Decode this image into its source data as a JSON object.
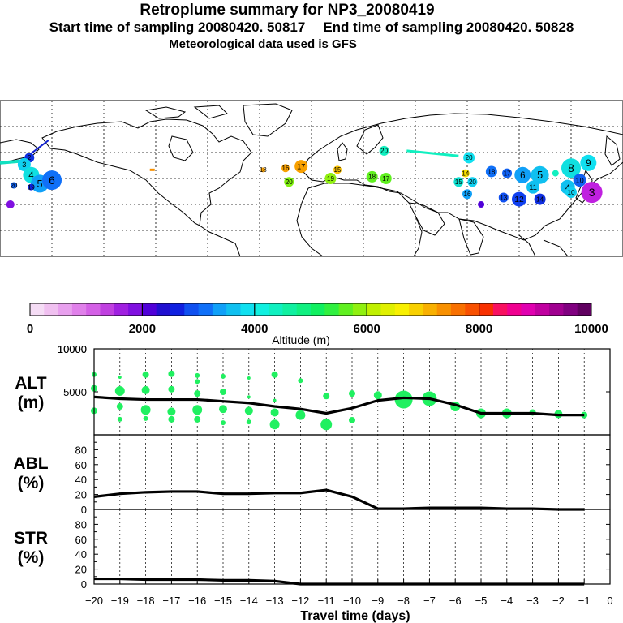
{
  "header": {
    "title": "Retroplume summary for NP3_20080419",
    "start_label": "Start time of sampling 20080420. 50817",
    "end_label": "End time of sampling 20080420. 50828",
    "met_label": "Meteorological data used is GFS"
  },
  "colorbar": {
    "label": "Altitude (m)",
    "tick_labels": [
      "0",
      "2000",
      "4000",
      "6000",
      "8000",
      "10000"
    ],
    "colors": [
      "#f5dcf5",
      "#f0c0f0",
      "#e8a0ee",
      "#e080ea",
      "#d460e6",
      "#c040e0",
      "#a020e0",
      "#8010e0",
      "#5000d8",
      "#2010d0",
      "#1020e0",
      "#1050f0",
      "#1070f8",
      "#10a0f8",
      "#10c0f0",
      "#10e0f0",
      "#10f0e0",
      "#10f0c0",
      "#10f0a0",
      "#10f080",
      "#10f060",
      "#30f040",
      "#60f020",
      "#90f010",
      "#c0f000",
      "#e0f000",
      "#f8f000",
      "#f8d000",
      "#f8b000",
      "#f89000",
      "#f87000",
      "#f85000",
      "#f83000",
      "#f81060",
      "#f00090",
      "#e000b0",
      "#c000a0",
      "#a00090",
      "#800080",
      "#600060"
    ]
  },
  "chart_data": {
    "type": "line",
    "x_label": "Travel time (days)",
    "x_ticks": [
      -20,
      -19,
      -18,
      -17,
      -16,
      -15,
      -14,
      -13,
      -12,
      -11,
      -10,
      -9,
      -8,
      -7,
      -6,
      -5,
      -4,
      -3,
      -2,
      -1,
      0
    ],
    "x_range": [
      -20,
      0
    ],
    "panels": [
      {
        "name": "ALT",
        "unit": "(m)",
        "ylim": [
          0,
          10000
        ],
        "y_ticks": [
          0,
          5000,
          10000
        ],
        "y_tick_labels": [
          "",
          "5000",
          "10000"
        ],
        "series": {
          "x": [
            -20,
            -19,
            -18,
            -17,
            -16,
            -15,
            -14,
            -13,
            -12,
            -11,
            -10,
            -9,
            -8,
            -7,
            -6,
            -5,
            -4,
            -3,
            -2,
            -1
          ],
          "y": [
            4400,
            4200,
            4100,
            4100,
            4100,
            3900,
            3700,
            3300,
            3000,
            2500,
            3100,
            4000,
            4300,
            4200,
            3500,
            2500,
            2500,
            2500,
            2300,
            2300
          ]
        },
        "scatter": [
          {
            "x": -20,
            "y": 7000,
            "r": 3
          },
          {
            "x": -20,
            "y": 5400,
            "r": 4
          },
          {
            "x": -20,
            "y": 2800,
            "r": 4
          },
          {
            "x": -19,
            "y": 6700,
            "r": 2
          },
          {
            "x": -19,
            "y": 5100,
            "r": 6
          },
          {
            "x": -19,
            "y": 3300,
            "r": 4
          },
          {
            "x": -19,
            "y": 1800,
            "r": 3
          },
          {
            "x": -18,
            "y": 7000,
            "r": 4
          },
          {
            "x": -18,
            "y": 5200,
            "r": 5
          },
          {
            "x": -18,
            "y": 2900,
            "r": 6
          },
          {
            "x": -18,
            "y": 1900,
            "r": 3
          },
          {
            "x": -17,
            "y": 7100,
            "r": 4
          },
          {
            "x": -17,
            "y": 5300,
            "r": 4
          },
          {
            "x": -17,
            "y": 2700,
            "r": 5
          },
          {
            "x": -17,
            "y": 1800,
            "r": 4
          },
          {
            "x": -16,
            "y": 6900,
            "r": 3
          },
          {
            "x": -16,
            "y": 6200,
            "r": 3
          },
          {
            "x": -16,
            "y": 4800,
            "r": 4
          },
          {
            "x": -16,
            "y": 2900,
            "r": 6
          },
          {
            "x": -16,
            "y": 1800,
            "r": 4
          },
          {
            "x": -15,
            "y": 6800,
            "r": 3
          },
          {
            "x": -15,
            "y": 5000,
            "r": 4
          },
          {
            "x": -15,
            "y": 3000,
            "r": 5
          },
          {
            "x": -15,
            "y": 1400,
            "r": 3
          },
          {
            "x": -14,
            "y": 6600,
            "r": 2
          },
          {
            "x": -14,
            "y": 4400,
            "r": 2
          },
          {
            "x": -14,
            "y": 2800,
            "r": 5
          },
          {
            "x": -14,
            "y": 1500,
            "r": 3
          },
          {
            "x": -13,
            "y": 7000,
            "r": 4
          },
          {
            "x": -13,
            "y": 4000,
            "r": 2
          },
          {
            "x": -13,
            "y": 2600,
            "r": 5
          },
          {
            "x": -13,
            "y": 1200,
            "r": 6
          },
          {
            "x": -12,
            "y": 6300,
            "r": 3
          },
          {
            "x": -12,
            "y": 2300,
            "r": 6
          },
          {
            "x": -11,
            "y": 4500,
            "r": 4
          },
          {
            "x": -11,
            "y": 1200,
            "r": 7
          },
          {
            "x": -10,
            "y": 4800,
            "r": 4
          },
          {
            "x": -10,
            "y": 1700,
            "r": 4
          },
          {
            "x": -9,
            "y": 4600,
            "r": 5
          },
          {
            "x": -8,
            "y": 4100,
            "r": 11
          },
          {
            "x": -7,
            "y": 4200,
            "r": 9
          },
          {
            "x": -6,
            "y": 3300,
            "r": 6
          },
          {
            "x": -5,
            "y": 2500,
            "r": 6
          },
          {
            "x": -4,
            "y": 2500,
            "r": 6
          },
          {
            "x": -3,
            "y": 2600,
            "r": 4
          },
          {
            "x": -2,
            "y": 2400,
            "r": 5
          },
          {
            "x": -1,
            "y": 2300,
            "r": 4
          }
        ]
      },
      {
        "name": "ABL",
        "unit": "(%)",
        "ylim": [
          0,
          100
        ],
        "y_ticks": [
          0,
          20,
          40,
          60,
          80
        ],
        "y_tick_labels": [
          "0",
          "20",
          "40",
          "60",
          "80"
        ],
        "series": {
          "x": [
            -20,
            -19,
            -18,
            -17,
            -16,
            -15,
            -14,
            -13,
            -12,
            -11,
            -10,
            -9,
            -8,
            -7,
            -6,
            -5,
            -4,
            -3,
            -2,
            -1
          ],
          "y": [
            17,
            21,
            23,
            24,
            24,
            21,
            21,
            22,
            22,
            26,
            17,
            1,
            1,
            2,
            2,
            2,
            1,
            1,
            0,
            0
          ]
        }
      },
      {
        "name": "STR",
        "unit": "(%)",
        "ylim": [
          0,
          100
        ],
        "y_ticks": [
          0,
          20,
          40,
          60,
          80
        ],
        "y_tick_labels": [
          "0",
          "20",
          "40",
          "60",
          "80"
        ],
        "series": {
          "x": [
            -20,
            -19,
            -18,
            -17,
            -16,
            -15,
            -14,
            -13,
            -12,
            -11,
            -10,
            -9,
            -8,
            -7,
            -6,
            -5,
            -4,
            -3,
            -2,
            -1
          ],
          "y": [
            7,
            7,
            6,
            6,
            6,
            5,
            5,
            4,
            0,
            0,
            0,
            0,
            0,
            0,
            0,
            0,
            0,
            0,
            0,
            0
          ]
        }
      }
    ]
  },
  "map": {
    "plume_labels": [
      {
        "t": "2",
        "lon": -163,
        "lat": 57,
        "color": "#1030e0",
        "r": 6
      },
      {
        "t": "3",
        "lon": -166,
        "lat": 53,
        "color": "#10d0f0",
        "r": 8
      },
      {
        "t": "4",
        "lon": -162,
        "lat": 47,
        "color": "#10e0e0",
        "r": 10
      },
      {
        "t": "5",
        "lon": -157,
        "lat": 42,
        "color": "#10a0f8",
        "r": 11
      },
      {
        "t": "6",
        "lon": -150,
        "lat": 44,
        "color": "#1070f8",
        "r": 12
      },
      {
        "t": "20",
        "lon": -172,
        "lat": 41,
        "color": "#1060f0",
        "r": 4
      },
      {
        "t": "",
        "lon": -174,
        "lat": 30,
        "color": "#8010e0",
        "r": 5
      },
      {
        "t": "19",
        "lon": -162,
        "lat": 40,
        "color": "#1020e0",
        "r": 4
      },
      {
        "t": "16",
        "lon": -15,
        "lat": 51,
        "color": "#f8a000",
        "r": 5
      },
      {
        "t": "17",
        "lon": -6,
        "lat": 52,
        "color": "#f8a000",
        "r": 8
      },
      {
        "t": "18",
        "lon": -28,
        "lat": 50,
        "color": "#f8a000",
        "r": 3
      },
      {
        "t": "15",
        "lon": 15,
        "lat": 50,
        "color": "#f8c000",
        "r": 5
      },
      {
        "t": "20",
        "lon": -13,
        "lat": 43,
        "color": "#80f010",
        "r": 6
      },
      {
        "t": "19",
        "lon": 11,
        "lat": 45,
        "color": "#90f010",
        "r": 7
      },
      {
        "t": "18",
        "lon": 35,
        "lat": 46,
        "color": "#60f020",
        "r": 7
      },
      {
        "t": "17",
        "lon": 43,
        "lat": 45,
        "color": "#60f020",
        "r": 7
      },
      {
        "t": "20",
        "lon": 42,
        "lat": 61,
        "color": "#10f0c0",
        "r": 6
      },
      {
        "t": "20",
        "lon": 91,
        "lat": 57,
        "color": "#10e0f0",
        "r": 7
      },
      {
        "t": "14",
        "lon": 89,
        "lat": 48,
        "color": "#f8e000",
        "r": 5
      },
      {
        "t": "18",
        "lon": 104,
        "lat": 49,
        "color": "#1070f8",
        "r": 7
      },
      {
        "t": "17",
        "lon": 113,
        "lat": 48,
        "color": "#1060f0",
        "r": 6
      },
      {
        "t": "6",
        "lon": 122,
        "lat": 47,
        "color": "#10a0f8",
        "r": 10
      },
      {
        "t": "5",
        "lon": 132,
        "lat": 47,
        "color": "#10c0f0",
        "r": 11
      },
      {
        "t": "8",
        "lon": 150,
        "lat": 51,
        "color": "#10e0e0",
        "r": 12
      },
      {
        "t": "9",
        "lon": 160,
        "lat": 54,
        "color": "#10e0f0",
        "r": 10
      },
      {
        "t": "10",
        "lon": 155,
        "lat": 44,
        "color": "#1060f0",
        "r": 8
      },
      {
        "t": "15",
        "lon": 85,
        "lat": 43,
        "color": "#10e0d0",
        "r": 6
      },
      {
        "t": "20",
        "lon": 93,
        "lat": 43,
        "color": "#10d0f0",
        "r": 6
      },
      {
        "t": "16",
        "lon": 90,
        "lat": 36,
        "color": "#10a0f8",
        "r": 6
      },
      {
        "t": "11",
        "lon": 128,
        "lat": 40,
        "color": "#10c0f0",
        "r": 8
      },
      {
        "t": "13",
        "lon": 111,
        "lat": 34,
        "color": "#1050f0",
        "r": 6
      },
      {
        "t": "12",
        "lon": 120,
        "lat": 33,
        "color": "#1040f0",
        "r": 9
      },
      {
        "t": "14",
        "lon": 132,
        "lat": 33,
        "color": "#1030e0",
        "r": 7
      },
      {
        "t": "3",
        "lon": 162,
        "lat": 37,
        "color": "#c020e0",
        "r": 13
      },
      {
        "t": "4",
        "lon": 148,
        "lat": 40,
        "color": "#10c0f0",
        "r": 9
      },
      {
        "t": "10",
        "lon": 150,
        "lat": 37,
        "color": "#10d0f0",
        "r": 7
      },
      {
        "t": "",
        "lon": 98,
        "lat": 30,
        "color": "#5000d8",
        "r": 4
      },
      {
        "t": "",
        "lon": 141,
        "lat": 48,
        "color": "#10f0c0",
        "r": 4
      }
    ]
  }
}
